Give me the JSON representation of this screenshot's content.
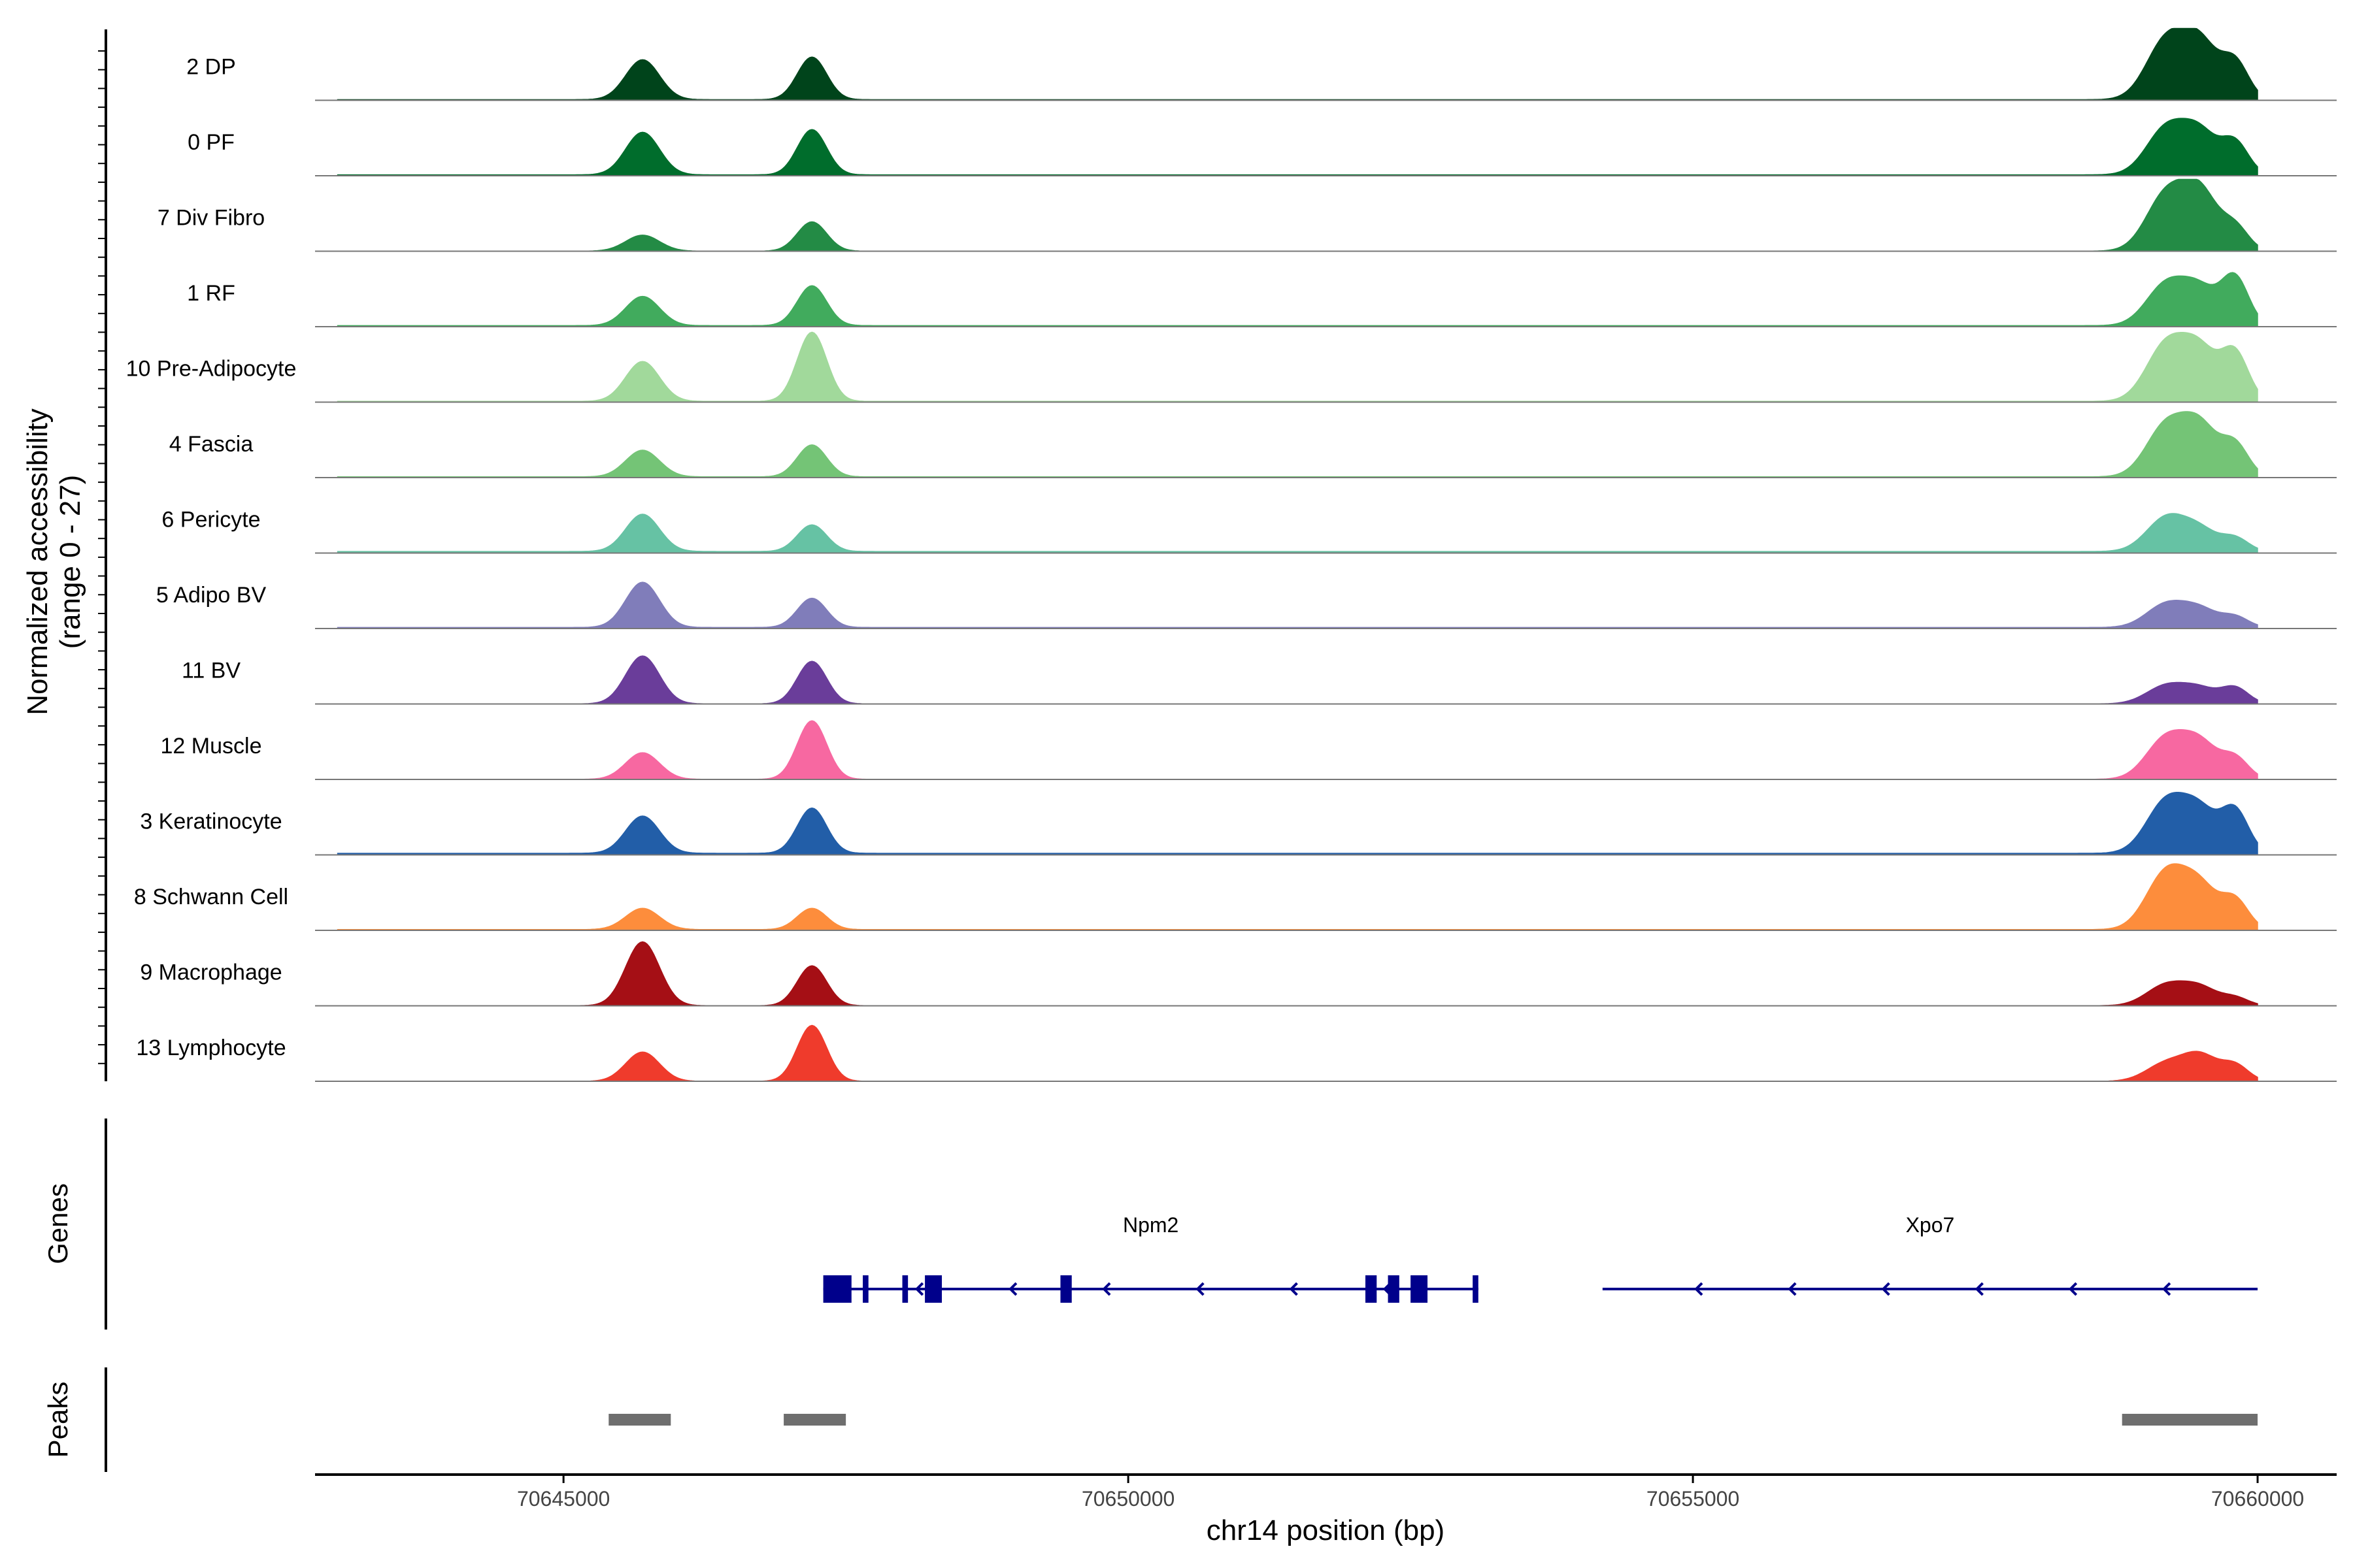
{
  "chart_data": {
    "type": "area",
    "title": "",
    "ylabel_line1": "Normalized accessibility",
    "ylabel_line2": "(range 0 - 27)",
    "xlabel": "chr14 position (bp)",
    "xlim": [
      70642800,
      70660700
    ],
    "ylim": [
      0,
      27
    ],
    "x_ticks": [
      70645000,
      70650000,
      70655000,
      70660000
    ],
    "x_tick_labels": [
      "70645000",
      "70650000",
      "70655000",
      "70660000"
    ],
    "tracks": [
      {
        "name": "2 DP",
        "color": "#00441b",
        "range": [
          70643000,
          70660000
        ],
        "baseline": 0.25,
        "peaks": [
          [
            70645700,
            150,
            15
          ],
          [
            70647200,
            130,
            16
          ],
          [
            70659200,
            180,
            23
          ],
          [
            70659500,
            150,
            19
          ],
          [
            70659800,
            120,
            14
          ]
        ]
      },
      {
        "name": "0 PF",
        "color": "#006d2c",
        "range": [
          70643000,
          70660000
        ],
        "baseline": 0.35,
        "peaks": [
          [
            70645700,
            150,
            16
          ],
          [
            70647200,
            130,
            17
          ],
          [
            70659200,
            180,
            18
          ],
          [
            70659500,
            150,
            14
          ],
          [
            70659800,
            120,
            12
          ]
        ]
      },
      {
        "name": "7 Div Fibro",
        "color": "#238b45",
        "range": [
          70645000,
          70660000
        ],
        "baseline": 0.05,
        "peaks": [
          [
            70645700,
            150,
            6
          ],
          [
            70647200,
            130,
            11
          ],
          [
            70659200,
            180,
            22
          ],
          [
            70659500,
            150,
            20
          ],
          [
            70659800,
            120,
            9
          ]
        ]
      },
      {
        "name": "1 RF",
        "color": "#41ab5d",
        "range": [
          70643000,
          70660000
        ],
        "baseline": 0.4,
        "peaks": [
          [
            70645700,
            150,
            11
          ],
          [
            70647200,
            130,
            15
          ],
          [
            70659200,
            180,
            16
          ],
          [
            70659500,
            150,
            12
          ],
          [
            70659800,
            120,
            18
          ]
        ]
      },
      {
        "name": "10 Pre-Adipocyte",
        "color": "#a1d99b",
        "range": [
          70643000,
          70660000
        ],
        "baseline": 0.3,
        "peaks": [
          [
            70645700,
            150,
            15
          ],
          [
            70647200,
            130,
            26
          ],
          [
            70659200,
            180,
            22
          ],
          [
            70659500,
            150,
            17
          ],
          [
            70659800,
            120,
            18
          ]
        ]
      },
      {
        "name": "4 Fascia",
        "color": "#74c476",
        "range": [
          70643000,
          70660000
        ],
        "baseline": 0.3,
        "peaks": [
          [
            70645700,
            150,
            10
          ],
          [
            70647200,
            130,
            12
          ],
          [
            70659200,
            180,
            20
          ],
          [
            70659500,
            150,
            17
          ],
          [
            70659800,
            120,
            12
          ]
        ]
      },
      {
        "name": "6 Pericyte",
        "color": "#66c2a4",
        "range": [
          70643000,
          70660000
        ],
        "baseline": 0.6,
        "peaks": [
          [
            70645700,
            150,
            14
          ],
          [
            70647200,
            130,
            10
          ],
          [
            70659200,
            180,
            13
          ],
          [
            70659500,
            150,
            7
          ],
          [
            70659800,
            120,
            5
          ]
        ]
      },
      {
        "name": "5 Adipo BV",
        "color": "#807dba",
        "range": [
          70643000,
          70660000
        ],
        "baseline": 0.4,
        "peaks": [
          [
            70645700,
            150,
            17
          ],
          [
            70647200,
            130,
            11
          ],
          [
            70659200,
            180,
            9
          ],
          [
            70659500,
            150,
            6
          ],
          [
            70659800,
            120,
            4
          ]
        ]
      },
      {
        "name": "11 BV",
        "color": "#6a3d9a",
        "range": [
          70643000,
          70660000
        ],
        "baseline": 0.05,
        "peaks": [
          [
            70645700,
            150,
            18
          ],
          [
            70647200,
            130,
            16
          ],
          [
            70659200,
            180,
            7
          ],
          [
            70659500,
            150,
            5
          ],
          [
            70659800,
            120,
            6
          ]
        ]
      },
      {
        "name": "12 Muscle",
        "color": "#f768a1",
        "range": [
          70644000,
          70660000
        ],
        "baseline": 0.05,
        "peaks": [
          [
            70645700,
            150,
            10
          ],
          [
            70647200,
            130,
            22
          ],
          [
            70659200,
            180,
            16
          ],
          [
            70659500,
            150,
            12
          ],
          [
            70659800,
            120,
            8
          ]
        ]
      },
      {
        "name": "3 Keratinocyte",
        "color": "#225ea8",
        "range": [
          70643000,
          70660000
        ],
        "baseline": 0.6,
        "peaks": [
          [
            70645700,
            150,
            14
          ],
          [
            70647200,
            130,
            17
          ],
          [
            70659200,
            180,
            20
          ],
          [
            70659500,
            150,
            14
          ],
          [
            70659800,
            120,
            16
          ]
        ]
      },
      {
        "name": "8 Schwann Cell",
        "color": "#fd8d3c",
        "range": [
          70643000,
          70660000
        ],
        "baseline": 0.3,
        "peaks": [
          [
            70645700,
            150,
            8
          ],
          [
            70647200,
            130,
            8
          ],
          [
            70659200,
            180,
            22
          ],
          [
            70659500,
            150,
            14
          ],
          [
            70659800,
            120,
            11
          ]
        ]
      },
      {
        "name": "9 Macrophage",
        "color": "#a50f15",
        "range": [
          70643000,
          70660000
        ],
        "baseline": 0.05,
        "peaks": [
          [
            70645700,
            150,
            24
          ],
          [
            70647200,
            130,
            15
          ],
          [
            70659200,
            180,
            8
          ],
          [
            70659500,
            150,
            6
          ],
          [
            70659800,
            120,
            3
          ]
        ]
      },
      {
        "name": "13 Lymphocyte",
        "color": "#ef3b2c",
        "range": [
          70644500,
          70660000
        ],
        "baseline": 0.0,
        "peaks": [
          [
            70645700,
            150,
            11
          ],
          [
            70647200,
            130,
            21
          ],
          [
            70659200,
            180,
            7
          ],
          [
            70659500,
            150,
            9
          ],
          [
            70659800,
            120,
            6
          ]
        ]
      }
    ],
    "genes_panel": {
      "title": "Genes",
      "color": "#00008b",
      "genes": [
        {
          "name": "Npm2",
          "start": 70647300,
          "end": 70653100,
          "strand": "-",
          "exons": [
            [
              70647300,
              70647550
            ],
            [
              70647650,
              70647700
            ],
            [
              70648000,
              70648050
            ],
            [
              70648200,
              70648350
            ],
            [
              70649400,
              70649500
            ],
            [
              70652100,
              70652200
            ],
            [
              70652300,
              70652400
            ],
            [
              70652500,
              70652650
            ],
            [
              70653050,
              70653100
            ]
          ]
        },
        {
          "name": "Xpo7",
          "start": 70654200,
          "end": 70660000,
          "strand": "-",
          "exons": []
        }
      ]
    },
    "peaks_panel": {
      "title": "Peaks",
      "color": "#6e6e6e",
      "peaks": [
        [
          70645400,
          70645950
        ],
        [
          70646950,
          70647500
        ],
        [
          70658800,
          70660000
        ]
      ]
    }
  }
}
